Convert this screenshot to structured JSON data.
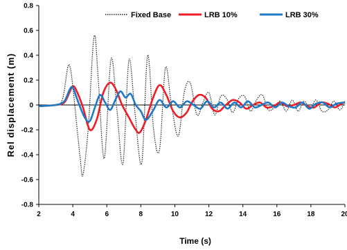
{
  "chart_data": {
    "type": "line",
    "title": "",
    "xlabel": "Time (s)",
    "ylabel": "Rel displacement (m)",
    "xlim": [
      2,
      20
    ],
    "ylim": [
      -0.8,
      0.8
    ],
    "xticks": [
      "2",
      "4",
      "6",
      "8",
      "10",
      "12",
      "14",
      "16",
      "18",
      "20"
    ],
    "yticks": [
      "-0.8",
      "-0.6",
      "-0.4",
      "-0.2",
      "0",
      "0.2",
      "0.4",
      "0.6",
      "0.8"
    ],
    "grid": false,
    "legend_position": "top",
    "series": [
      {
        "name": "Fixed Base",
        "color": "#222222",
        "style": "dotted",
        "x": [
          2.0,
          3.0,
          3.4,
          3.7,
          3.85,
          4.0,
          4.15,
          4.45,
          4.6,
          4.9,
          5.25,
          5.5,
          5.85,
          6.25,
          6.6,
          6.95,
          7.3,
          7.65,
          8.05,
          8.4,
          8.75,
          9.1,
          9.45,
          9.8,
          10.2,
          10.55,
          10.9,
          11.3,
          11.65,
          12.0,
          12.35,
          12.7,
          13.05,
          13.4,
          13.75,
          14.1,
          14.45,
          14.8,
          15.15,
          15.5,
          15.85,
          16.2,
          16.55,
          16.9,
          17.25,
          17.6,
          17.95,
          18.3,
          18.65,
          19.0,
          19.35,
          19.7,
          20.0
        ],
        "values": [
          -0.01,
          0.0,
          0.05,
          0.3,
          0.3,
          0.15,
          -0.05,
          -0.45,
          -0.56,
          -0.2,
          0.55,
          0.2,
          -0.43,
          0.37,
          -0.05,
          -0.47,
          0.36,
          -0.05,
          -0.47,
          0.4,
          -0.2,
          -0.36,
          0.3,
          0.0,
          -0.25,
          0.1,
          0.18,
          -0.08,
          0.02,
          0.1,
          -0.08,
          0.07,
          0.05,
          -0.06,
          0.05,
          0.07,
          -0.05,
          0.04,
          0.08,
          -0.04,
          -0.02,
          0.03,
          -0.05,
          0.04,
          -0.05,
          0.03,
          -0.03,
          0.04,
          -0.05,
          -0.04,
          0.03,
          -0.04,
          0.03
        ]
      },
      {
        "name": "LRB 10%",
        "color": "#ee1c25",
        "style": "solid",
        "x": [
          2.0,
          3.0,
          3.5,
          3.8,
          4.0,
          4.2,
          4.6,
          5.0,
          5.4,
          5.8,
          6.2,
          6.55,
          6.9,
          7.3,
          7.7,
          7.95,
          8.3,
          8.7,
          9.1,
          9.5,
          9.9,
          10.3,
          10.7,
          11.0,
          11.4,
          11.8,
          12.2,
          12.6,
          13.0,
          13.4,
          13.8,
          14.2,
          14.6,
          15.0,
          15.4,
          15.8,
          16.2,
          16.6,
          17.0,
          17.4,
          17.8,
          18.2,
          18.6,
          19.0,
          19.4,
          19.8,
          20.0
        ],
        "values": [
          -0.01,
          0.0,
          0.02,
          0.1,
          0.15,
          0.12,
          -0.02,
          -0.2,
          -0.12,
          0.1,
          0.18,
          0.12,
          0.0,
          -0.1,
          -0.2,
          -0.22,
          -0.12,
          0.05,
          0.16,
          0.08,
          -0.05,
          -0.1,
          -0.06,
          0.02,
          0.08,
          0.06,
          -0.03,
          -0.05,
          0.0,
          0.04,
          0.02,
          -0.03,
          0.0,
          0.02,
          -0.02,
          -0.01,
          0.02,
          -0.01,
          0.0,
          0.02,
          -0.01,
          -0.02,
          0.02,
          0.01,
          -0.02,
          0.01,
          0.02
        ]
      },
      {
        "name": "LRB 30%",
        "color": "#1f78c8",
        "style": "solid",
        "x": [
          2.0,
          3.0,
          3.5,
          3.8,
          4.0,
          4.3,
          4.7,
          5.0,
          5.3,
          5.6,
          5.9,
          6.2,
          6.5,
          6.8,
          7.1,
          7.4,
          7.7,
          8.0,
          8.3,
          8.7,
          9.1,
          9.5,
          9.9,
          10.3,
          10.7,
          11.1,
          11.5,
          11.9,
          12.3,
          12.7,
          13.1,
          13.5,
          13.9,
          14.3,
          14.7,
          15.1,
          15.5,
          15.9,
          16.3,
          16.7,
          17.1,
          17.5,
          17.9,
          18.3,
          18.7,
          19.1,
          19.5,
          19.9,
          20.0
        ],
        "values": [
          -0.01,
          0.0,
          0.03,
          0.12,
          0.14,
          0.03,
          -0.1,
          -0.13,
          -0.02,
          0.08,
          0.02,
          -0.04,
          0.04,
          0.11,
          0.06,
          0.09,
          0.0,
          -0.05,
          -0.12,
          -0.05,
          0.04,
          -0.02,
          0.03,
          -0.02,
          0.03,
          0.0,
          -0.03,
          0.03,
          -0.02,
          0.02,
          -0.03,
          0.02,
          -0.02,
          0.03,
          -0.02,
          0.0,
          0.02,
          -0.02,
          0.02,
          -0.01,
          -0.02,
          0.02,
          -0.03,
          0.01,
          0.02,
          -0.02,
          0.01,
          0.02,
          0.02
        ]
      }
    ]
  }
}
